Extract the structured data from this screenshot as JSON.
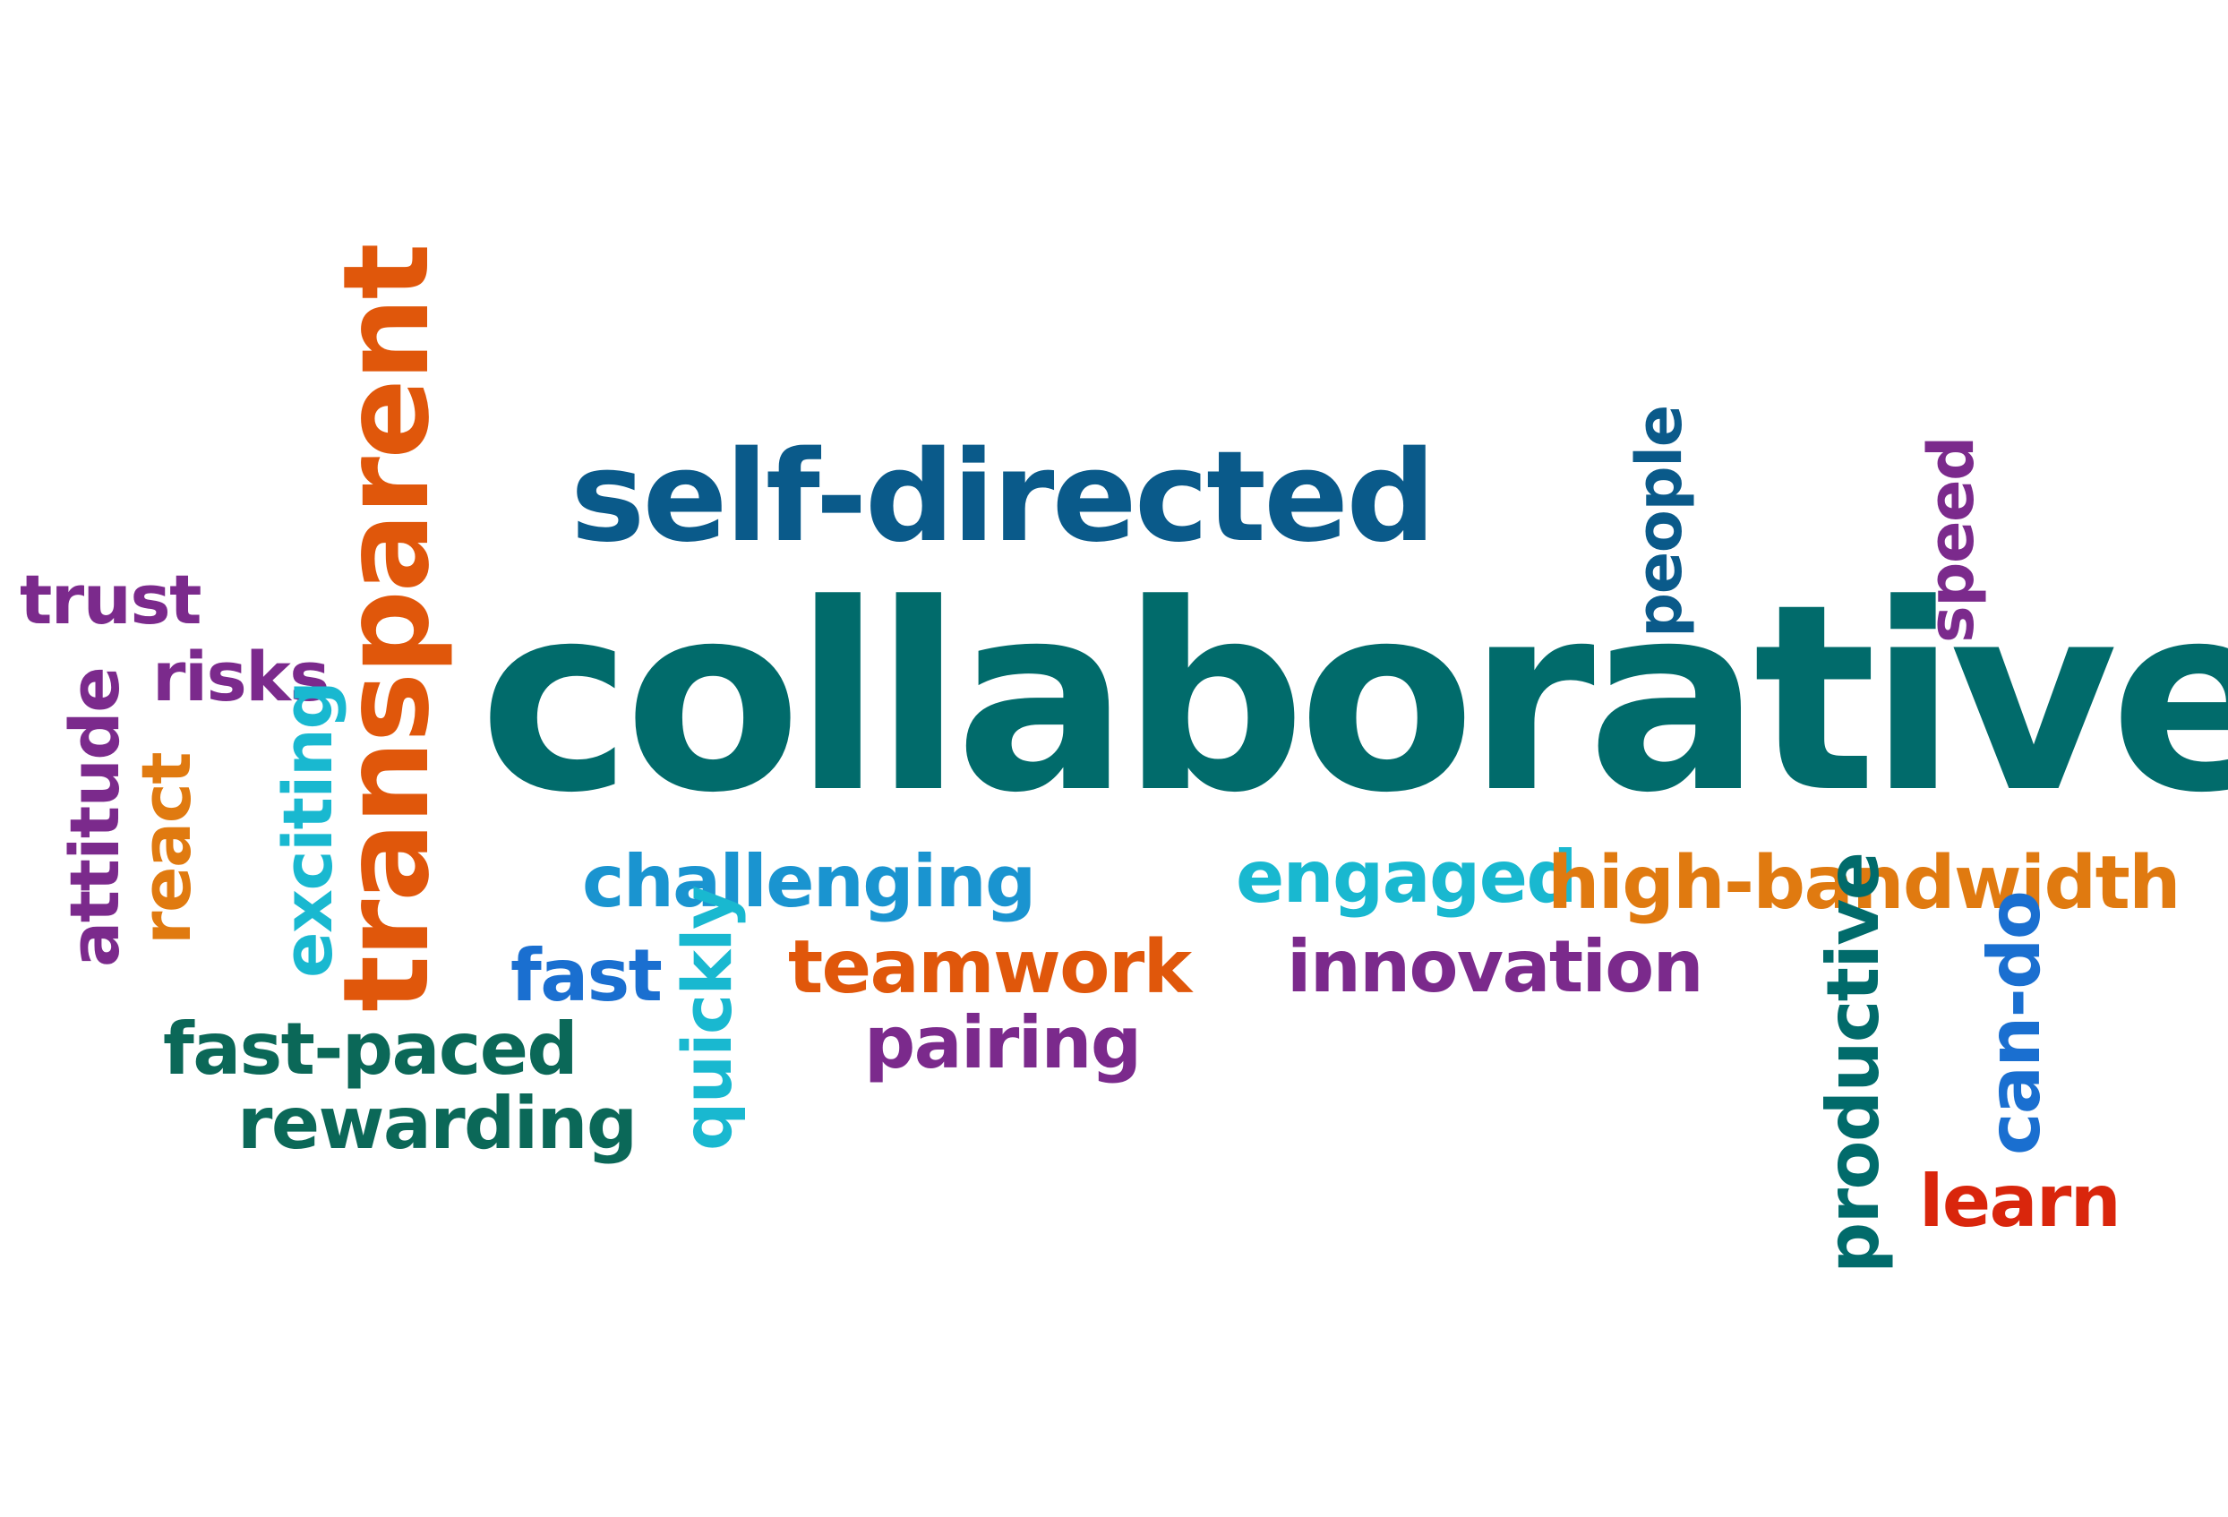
{
  "colors": {
    "teal": "#016b6b",
    "navy": "#0a5a8a",
    "orange": "#e0570b",
    "amber": "#e07a10",
    "purple": "#7b2a8c",
    "cyan": "#19b8d0",
    "sky": "#1a94d0",
    "blue": "#1a6fd0",
    "green": "#0b6858",
    "red": "#d9260c"
  },
  "words": {
    "collaborative": {
      "text": "collaborative",
      "color": "#016b6b"
    },
    "self_directed": {
      "text": "self-directed",
      "color": "#0a5a8a"
    },
    "transparent": {
      "text": "transparent",
      "color": "#e0570b"
    },
    "trust": {
      "text": "trust",
      "color": "#7b2a8c"
    },
    "risks": {
      "text": "risks",
      "color": "#7b2a8c"
    },
    "attitude": {
      "text": "attitude",
      "color": "#7b2a8c"
    },
    "react": {
      "text": "react",
      "color": "#e07a10"
    },
    "exciting": {
      "text": "exciting",
      "color": "#19b8d0"
    },
    "challenging": {
      "text": "challenging",
      "color": "#1a94d0"
    },
    "fast": {
      "text": "fast",
      "color": "#1a6fd0"
    },
    "quickly": {
      "text": "quickly",
      "color": "#19b8d0"
    },
    "teamwork": {
      "text": "teamwork",
      "color": "#e0570b"
    },
    "pairing": {
      "text": "pairing",
      "color": "#7b2a8c"
    },
    "fast_paced": {
      "text": "fast-paced",
      "color": "#0b6858"
    },
    "rewarding": {
      "text": "rewarding",
      "color": "#0b6858"
    },
    "engaged": {
      "text": "engaged",
      "color": "#19b8d0"
    },
    "high_bandwidth": {
      "text": "high-bandwidth",
      "color": "#e07a10"
    },
    "innovation": {
      "text": "innovation",
      "color": "#7b2a8c"
    },
    "people": {
      "text": "people",
      "color": "#0a5a8a"
    },
    "speed": {
      "text": "speed",
      "color": "#7b2a8c"
    },
    "productive": {
      "text": "productive",
      "color": "#016b6b"
    },
    "can_do": {
      "text": "can-do",
      "color": "#1a6fd0"
    },
    "learn": {
      "text": "learn",
      "color": "#d9260c"
    }
  }
}
